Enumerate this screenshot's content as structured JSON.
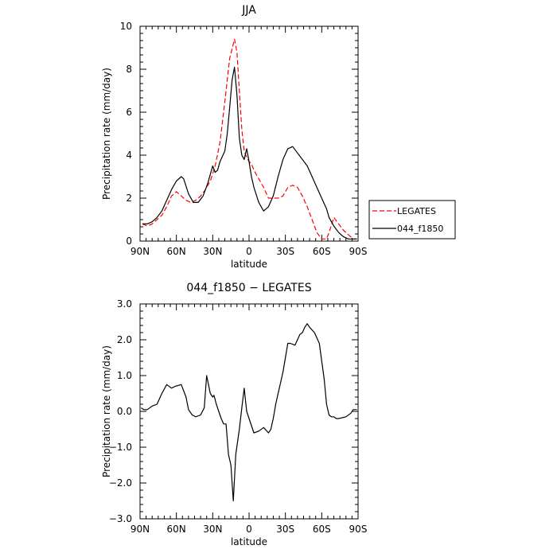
{
  "chart_data": [
    {
      "type": "line",
      "title": "JJA",
      "xlabel": "latitude",
      "ylabel": "Precipitation rate (mm/day)",
      "xlim": [
        -90,
        90
      ],
      "ylim": [
        0,
        10
      ],
      "xticks": [
        -90,
        -60,
        -30,
        0,
        30,
        60,
        90
      ],
      "xtick_labels": [
        "90N",
        "60N",
        "30N",
        "0",
        "30S",
        "60S",
        "90S"
      ],
      "yticks": [
        0,
        2,
        4,
        6,
        8,
        10
      ],
      "ytick_labels": [
        "0",
        "2",
        "4",
        "6",
        "8",
        "10"
      ],
      "legend": "right",
      "series": [
        {
          "name": "LEGATES",
          "color": "#ff0000",
          "dash": "dashed",
          "x": [
            -88,
            -84,
            -80,
            -76,
            -72,
            -68,
            -64,
            -60,
            -56,
            -52,
            -48,
            -44,
            -40,
            -36,
            -32,
            -28,
            -24,
            -20,
            -16,
            -12,
            -10,
            -8,
            -6,
            -4,
            -2,
            0,
            2,
            4,
            8,
            12,
            16,
            20,
            24,
            28,
            32,
            36,
            40,
            44,
            48,
            52,
            56,
            60,
            64,
            66,
            70,
            74,
            78,
            82,
            86,
            89
          ],
          "y": [
            0.8,
            0.7,
            0.8,
            1.0,
            1.2,
            1.6,
            2.1,
            2.3,
            2.1,
            1.9,
            1.8,
            1.9,
            2.1,
            2.4,
            2.8,
            3.5,
            4.6,
            6.5,
            8.5,
            9.4,
            8.8,
            7.0,
            5.2,
            4.2,
            3.9,
            3.7,
            3.6,
            3.3,
            2.9,
            2.5,
            2.0,
            2.0,
            2.0,
            2.1,
            2.5,
            2.6,
            2.5,
            2.1,
            1.6,
            1.0,
            0.4,
            0.1,
            0.1,
            0.4,
            1.1,
            0.8,
            0.5,
            0.3,
            0.1,
            0.1
          ]
        },
        {
          "name": "044_f1850",
          "color": "#000000",
          "dash": "solid",
          "x": [
            -88,
            -84,
            -80,
            -76,
            -72,
            -68,
            -64,
            -60,
            -56,
            -54,
            -50,
            -46,
            -42,
            -38,
            -34,
            -30,
            -28,
            -26,
            -24,
            -20,
            -18,
            -16,
            -14,
            -12,
            -10,
            -8,
            -6,
            -4,
            -2,
            0,
            2,
            4,
            8,
            12,
            16,
            20,
            24,
            28,
            32,
            36,
            40,
            44,
            48,
            52,
            56,
            60,
            64,
            66,
            70,
            74,
            78,
            82,
            86,
            89
          ],
          "y": [
            0.8,
            0.8,
            0.9,
            1.1,
            1.4,
            1.9,
            2.4,
            2.8,
            3.0,
            2.9,
            2.2,
            1.8,
            1.8,
            2.1,
            2.7,
            3.5,
            3.2,
            3.3,
            3.7,
            4.2,
            5.0,
            6.2,
            7.5,
            8.1,
            6.8,
            4.8,
            4.0,
            3.8,
            4.3,
            3.7,
            3.0,
            2.5,
            1.8,
            1.4,
            1.6,
            2.1,
            3.0,
            3.8,
            4.3,
            4.4,
            4.1,
            3.8,
            3.5,
            3.0,
            2.5,
            2.0,
            1.5,
            1.1,
            0.7,
            0.4,
            0.2,
            0.1,
            0.1,
            0.1
          ]
        }
      ]
    },
    {
      "type": "line",
      "title": "044_f1850 − LEGATES",
      "xlabel": "latitude",
      "ylabel": "Precipitation rate (mm/day)",
      "xlim": [
        -90,
        90
      ],
      "ylim": [
        -3,
        3
      ],
      "xticks": [
        -90,
        -60,
        -30,
        0,
        30,
        60,
        90
      ],
      "xtick_labels": [
        "90N",
        "60N",
        "30N",
        "0",
        "30S",
        "60S",
        "90S"
      ],
      "yticks": [
        -3,
        -2,
        -1,
        0,
        1,
        2,
        3
      ],
      "ytick_labels": [
        "−3.0",
        "−2.0",
        "−1.0",
        "0.0",
        "1.0",
        "2.0",
        "3.0"
      ],
      "series": [
        {
          "name": "",
          "color": "#000000",
          "dash": "solid",
          "x": [
            -89,
            -87,
            -84,
            -80,
            -76,
            -72,
            -68,
            -64,
            -61,
            -56,
            -52,
            -50,
            -47,
            -44,
            -40,
            -37,
            -35,
            -32,
            -30,
            -29,
            -27,
            -25,
            -23,
            -21,
            -19,
            -17,
            -15,
            -13,
            -11,
            -8,
            -6,
            -4,
            -2,
            1,
            4,
            8,
            12,
            16,
            18,
            20,
            22,
            24,
            26,
            28,
            30,
            32,
            34,
            38,
            42,
            44,
            46,
            48,
            50,
            54,
            58,
            62,
            64,
            66,
            68,
            70,
            72,
            74,
            80,
            84,
            86,
            89
          ],
          "y": [
            0.1,
            0.05,
            0.05,
            0.15,
            0.2,
            0.5,
            0.75,
            0.65,
            0.7,
            0.75,
            0.4,
            0.05,
            -0.1,
            -0.15,
            -0.1,
            0.1,
            1.0,
            0.5,
            0.4,
            0.45,
            0.2,
            0.0,
            -0.2,
            -0.35,
            -0.35,
            -1.2,
            -1.5,
            -2.5,
            -1.2,
            -0.5,
            0.1,
            0.65,
            0.0,
            -0.3,
            -0.6,
            -0.55,
            -0.45,
            -0.6,
            -0.5,
            -0.2,
            0.2,
            0.5,
            0.8,
            1.1,
            1.5,
            1.9,
            1.9,
            1.85,
            2.15,
            2.2,
            2.35,
            2.45,
            2.35,
            2.2,
            1.9,
            0.9,
            0.2,
            -0.1,
            -0.15,
            -0.15,
            -0.2,
            -0.2,
            -0.15,
            -0.05,
            0.05,
            0.05
          ]
        }
      ]
    }
  ]
}
